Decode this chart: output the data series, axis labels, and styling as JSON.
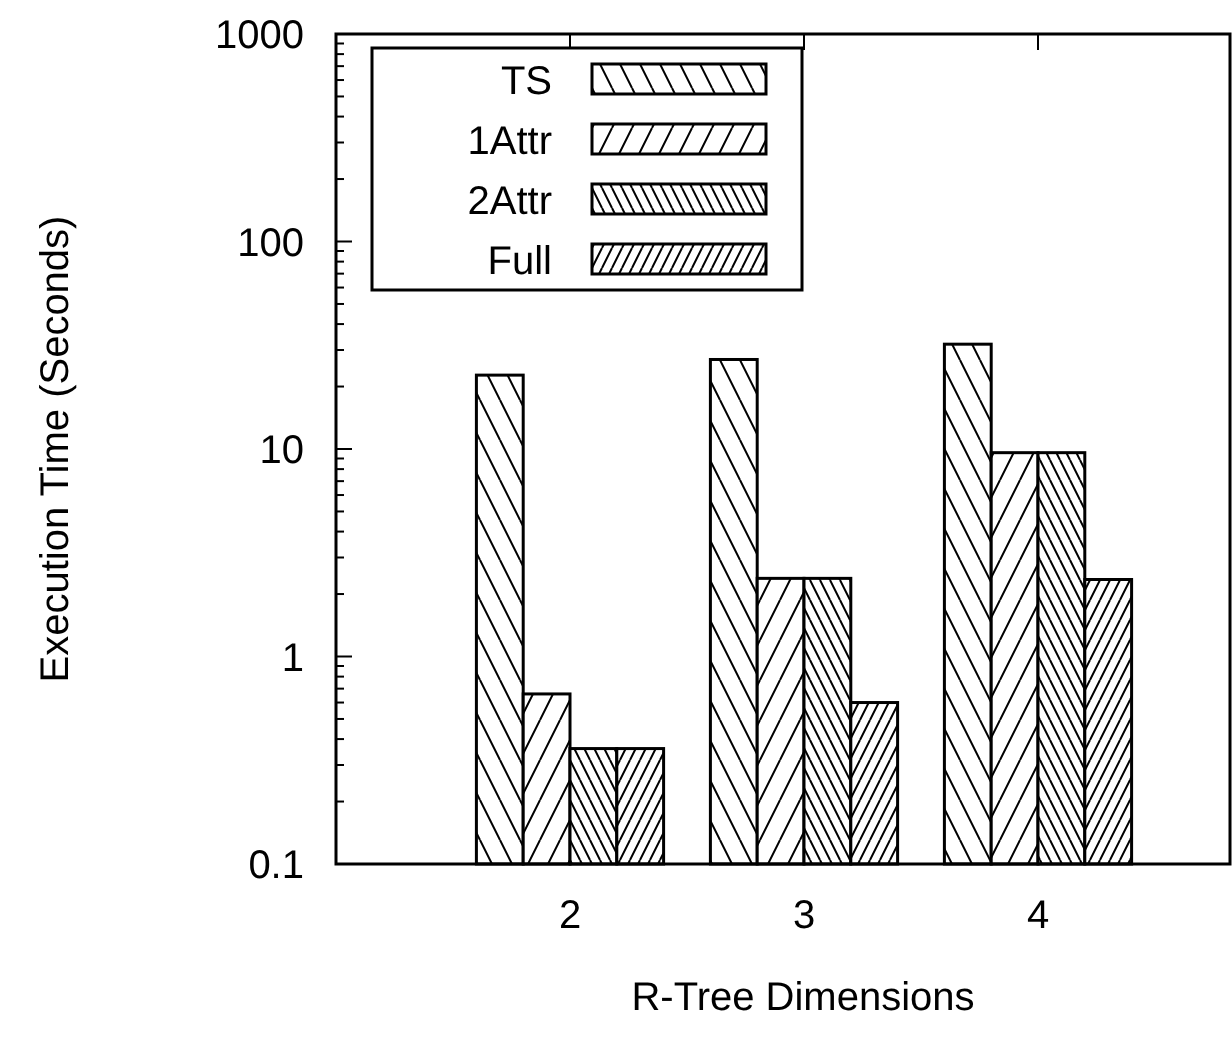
{
  "chart_data": {
    "type": "bar",
    "xlabel": "R-Tree Dimensions",
    "ylabel": "Execution Time (Seconds)",
    "categories": [
      "2",
      "3",
      "4"
    ],
    "log": true,
    "ylim": [
      0.1,
      1000
    ],
    "yticks": [
      0.1,
      {
        "value": 0.2,
        "label": null
      },
      {
        "value": 0.3,
        "label": null
      },
      {
        "value": 0.4,
        "label": null
      },
      {
        "value": 0.5,
        "label": null
      },
      {
        "value": 0.6,
        "label": null
      },
      {
        "value": 0.7,
        "label": null
      },
      {
        "value": 0.8,
        "label": null
      },
      {
        "value": 0.9,
        "label": null
      },
      1,
      {
        "value": 2,
        "label": null
      },
      {
        "value": 3,
        "label": null
      },
      {
        "value": 4,
        "label": null
      },
      {
        "value": 5,
        "label": null
      },
      {
        "value": 6,
        "label": null
      },
      {
        "value": 7,
        "label": null
      },
      {
        "value": 8,
        "label": null
      },
      {
        "value": 9,
        "label": null
      },
      10,
      {
        "value": 20,
        "label": null
      },
      {
        "value": 30,
        "label": null
      },
      {
        "value": 40,
        "label": null
      },
      {
        "value": 50,
        "label": null
      },
      {
        "value": 60,
        "label": null
      },
      {
        "value": 70,
        "label": null
      },
      {
        "value": 80,
        "label": null
      },
      {
        "value": 90,
        "label": null
      },
      100,
      {
        "value": 200,
        "label": null
      },
      {
        "value": 300,
        "label": null
      },
      {
        "value": 400,
        "label": null
      },
      {
        "value": 500,
        "label": null
      },
      {
        "value": 600,
        "label": null
      },
      {
        "value": 700,
        "label": null
      },
      {
        "value": 800,
        "label": null
      },
      {
        "value": 900,
        "label": null
      },
      1000
    ],
    "legend": "top left",
    "series": [
      {
        "name": "TS",
        "color": "#000000",
        "values": [
          22.7,
          27,
          32
        ]
      },
      {
        "name": "1Attr",
        "color": "#000000",
        "values": [
          0.66,
          2.38,
          9.6
        ]
      },
      {
        "name": "2Attr",
        "color": "#000000",
        "values": [
          0.36,
          2.38,
          9.6
        ]
      },
      {
        "name": "Full",
        "color": "#000000",
        "values": [
          0.36,
          0.6,
          2.35
        ]
      }
    ]
  }
}
